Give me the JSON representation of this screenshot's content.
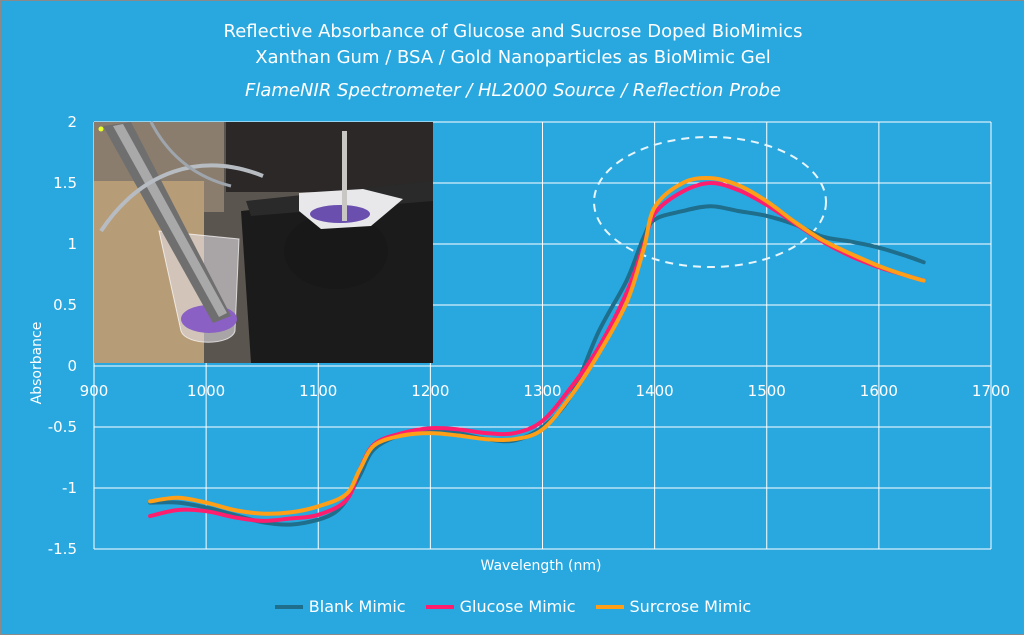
{
  "chart_data": {
    "type": "line",
    "title": "Reflective Absorbance of Glucose and Sucrose Doped BioMimics",
    "subtitle": "Xanthan Gum / BSA / Gold Nanoparticles as BioMimic Gel",
    "subtitle2": "FlameNIR Spectrometer / HL2000 Source / Reflection Probe",
    "xlabel": "Wavelength (nm)",
    "ylabel": "Absorbance",
    "xlim": [
      900,
      1700
    ],
    "ylim": [
      -1.5,
      2
    ],
    "x_ticks": [
      "900",
      "1000",
      "1100",
      "1200",
      "1300",
      "1400",
      "1500",
      "1600",
      "1700"
    ],
    "y_ticks": [
      "2",
      "1.5",
      "1",
      "0.5",
      "0",
      "-0.5",
      "-1",
      "-1.5"
    ],
    "grid": true,
    "legend_position": "bottom",
    "inset_image": "photo of probe, beaker and sample dish with purple biomimic gel",
    "highlight": "dashed ellipse around 1400-1550 nm peak",
    "series": [
      {
        "name": "Blank Mimic",
        "color": "#1e6e8c",
        "points": [
          [
            950,
            -1.12
          ],
          [
            975,
            -1.12
          ],
          [
            1000,
            -1.16
          ],
          [
            1025,
            -1.22
          ],
          [
            1050,
            -1.28
          ],
          [
            1075,
            -1.3
          ],
          [
            1100,
            -1.26
          ],
          [
            1115,
            -1.2
          ],
          [
            1125,
            -1.1
          ],
          [
            1137,
            -0.9
          ],
          [
            1150,
            -0.68
          ],
          [
            1175,
            -0.56
          ],
          [
            1200,
            -0.53
          ],
          [
            1225,
            -0.55
          ],
          [
            1250,
            -0.6
          ],
          [
            1275,
            -0.61
          ],
          [
            1300,
            -0.5
          ],
          [
            1325,
            -0.25
          ],
          [
            1350,
            0.28
          ],
          [
            1375,
            0.7
          ],
          [
            1390,
            1.05
          ],
          [
            1400,
            1.2
          ],
          [
            1425,
            1.27
          ],
          [
            1450,
            1.31
          ],
          [
            1475,
            1.27
          ],
          [
            1500,
            1.23
          ],
          [
            1525,
            1.16
          ],
          [
            1550,
            1.06
          ],
          [
            1575,
            1.02
          ],
          [
            1600,
            0.97
          ],
          [
            1625,
            0.9
          ],
          [
            1640,
            0.85
          ]
        ]
      },
      {
        "name": "Glucose Mimic",
        "color": "#ff1e6e",
        "points": [
          [
            950,
            -1.23
          ],
          [
            975,
            -1.18
          ],
          [
            1000,
            -1.19
          ],
          [
            1025,
            -1.24
          ],
          [
            1050,
            -1.27
          ],
          [
            1075,
            -1.25
          ],
          [
            1100,
            -1.22
          ],
          [
            1125,
            -1.1
          ],
          [
            1137,
            -0.85
          ],
          [
            1150,
            -0.64
          ],
          [
            1175,
            -0.55
          ],
          [
            1200,
            -0.51
          ],
          [
            1225,
            -0.52
          ],
          [
            1250,
            -0.55
          ],
          [
            1275,
            -0.55
          ],
          [
            1300,
            -0.45
          ],
          [
            1325,
            -0.18
          ],
          [
            1350,
            0.15
          ],
          [
            1375,
            0.6
          ],
          [
            1390,
            0.98
          ],
          [
            1400,
            1.25
          ],
          [
            1425,
            1.43
          ],
          [
            1450,
            1.5
          ],
          [
            1475,
            1.44
          ],
          [
            1500,
            1.32
          ],
          [
            1525,
            1.17
          ],
          [
            1550,
            1.02
          ],
          [
            1575,
            0.9
          ],
          [
            1600,
            0.81
          ],
          [
            1625,
            0.74
          ],
          [
            1640,
            0.7
          ]
        ]
      },
      {
        "name": "Surcrose Mimic",
        "color": "#ff9e17",
        "points": [
          [
            950,
            -1.11
          ],
          [
            975,
            -1.08
          ],
          [
            1000,
            -1.12
          ],
          [
            1025,
            -1.18
          ],
          [
            1050,
            -1.21
          ],
          [
            1075,
            -1.2
          ],
          [
            1100,
            -1.15
          ],
          [
            1125,
            -1.05
          ],
          [
            1137,
            -0.85
          ],
          [
            1150,
            -0.65
          ],
          [
            1175,
            -0.57
          ],
          [
            1200,
            -0.55
          ],
          [
            1225,
            -0.57
          ],
          [
            1250,
            -0.6
          ],
          [
            1275,
            -0.6
          ],
          [
            1300,
            -0.52
          ],
          [
            1325,
            -0.25
          ],
          [
            1350,
            0.1
          ],
          [
            1375,
            0.52
          ],
          [
            1390,
            0.95
          ],
          [
            1400,
            1.3
          ],
          [
            1425,
            1.5
          ],
          [
            1450,
            1.54
          ],
          [
            1475,
            1.48
          ],
          [
            1500,
            1.35
          ],
          [
            1525,
            1.18
          ],
          [
            1550,
            1.03
          ],
          [
            1575,
            0.92
          ],
          [
            1600,
            0.82
          ],
          [
            1625,
            0.74
          ],
          [
            1640,
            0.7
          ]
        ]
      }
    ]
  }
}
